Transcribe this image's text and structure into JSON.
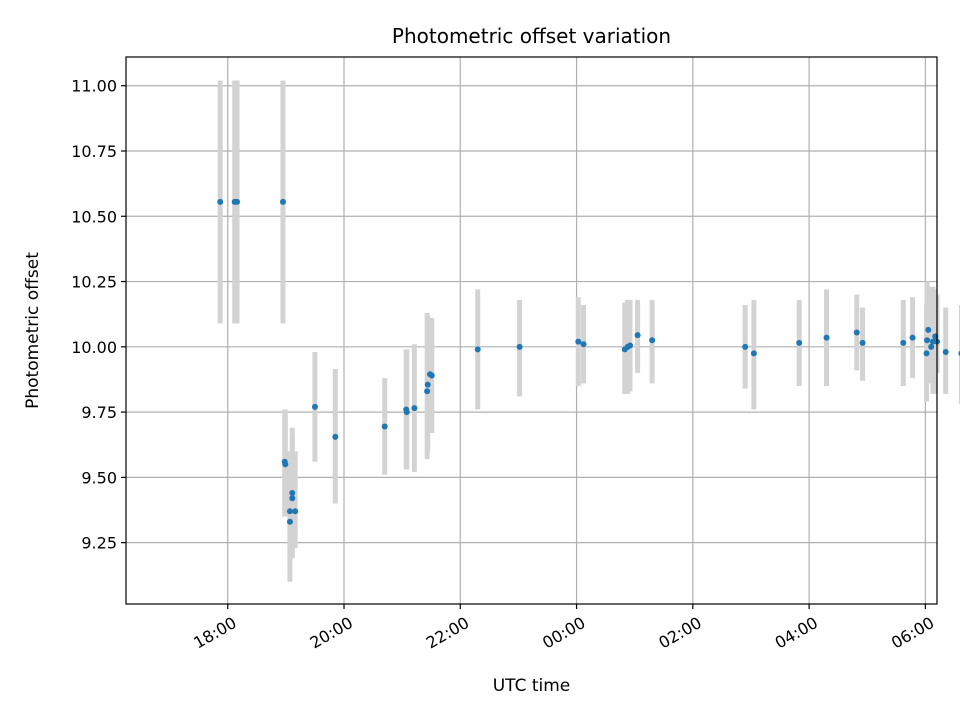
{
  "chart_data": {
    "type": "scatter",
    "title": "Photometric offset variation",
    "xlabel": "UTC time",
    "ylabel": "Photometric offset",
    "x_unit": "hours after 00:00 UTC (negative = previous evening)",
    "xlim": [
      -7.75,
      6.2
    ],
    "ylim": [
      9.015,
      11.11
    ],
    "grid": true,
    "colors": {
      "points": "#1f77b4",
      "error_bars": "#d3d3d3",
      "grid": "#b0b0b0"
    },
    "x_ticks": [
      {
        "value": -6,
        "label": "18:00"
      },
      {
        "value": -4,
        "label": "20:00"
      },
      {
        "value": -2,
        "label": "22:00"
      },
      {
        "value": 0,
        "label": "00:00"
      },
      {
        "value": 2,
        "label": "02:00"
      },
      {
        "value": 4,
        "label": "04:00"
      },
      {
        "value": 6,
        "label": "06:00"
      }
    ],
    "y_ticks": [
      {
        "value": 9.25,
        "label": "9.25"
      },
      {
        "value": 9.5,
        "label": "9.50"
      },
      {
        "value": 9.75,
        "label": "9.75"
      },
      {
        "value": 10.0,
        "label": "10.00"
      },
      {
        "value": 10.25,
        "label": "10.25"
      },
      {
        "value": 10.5,
        "label": "10.50"
      },
      {
        "value": 10.75,
        "label": "10.75"
      },
      {
        "value": 11.0,
        "label": "11.00"
      }
    ],
    "series": [
      {
        "points": [
          {
            "x": -6.13,
            "y": 10.555,
            "lo": 10.09,
            "hi": 11.02
          },
          {
            "x": -5.88,
            "y": 10.555,
            "lo": 10.09,
            "hi": 11.02
          },
          {
            "x": -5.84,
            "y": 10.555,
            "lo": 10.09,
            "hi": 11.02
          },
          {
            "x": -5.05,
            "y": 10.555,
            "lo": 10.09,
            "hi": 11.02
          },
          {
            "x": -5.02,
            "y": 9.56,
            "lo": 9.35,
            "hi": 9.76
          },
          {
            "x": -5.01,
            "y": 9.55,
            "lo": 9.35,
            "hi": 9.76
          },
          {
            "x": -4.93,
            "y": 9.37,
            "lo": 9.1,
            "hi": 9.6
          },
          {
            "x": -4.93,
            "y": 9.33,
            "lo": 9.18,
            "hi": 9.55
          },
          {
            "x": -4.89,
            "y": 9.44,
            "lo": 9.2,
            "hi": 9.69
          },
          {
            "x": -4.89,
            "y": 9.42,
            "lo": 9.19,
            "hi": 9.66
          },
          {
            "x": -4.84,
            "y": 9.37,
            "lo": 9.23,
            "hi": 9.6
          },
          {
            "x": -4.5,
            "y": 9.77,
            "lo": 9.56,
            "hi": 9.98
          },
          {
            "x": -4.15,
            "y": 9.655,
            "lo": 9.4,
            "hi": 9.915
          },
          {
            "x": -3.3,
            "y": 9.695,
            "lo": 9.51,
            "hi": 9.88
          },
          {
            "x": -2.93,
            "y": 9.76,
            "lo": 9.53,
            "hi": 9.99
          },
          {
            "x": -2.92,
            "y": 9.75,
            "lo": 9.53,
            "hi": 9.99
          },
          {
            "x": -2.79,
            "y": 9.765,
            "lo": 9.52,
            "hi": 10.01
          },
          {
            "x": -2.57,
            "y": 9.83,
            "lo": 9.57,
            "hi": 10.13
          },
          {
            "x": -2.56,
            "y": 9.855,
            "lo": 9.6,
            "hi": 10.12
          },
          {
            "x": -2.52,
            "y": 9.895,
            "lo": 9.67,
            "hi": 10.11
          },
          {
            "x": -2.49,
            "y": 9.89,
            "lo": 9.67,
            "hi": 10.11
          },
          {
            "x": -1.7,
            "y": 9.99,
            "lo": 9.76,
            "hi": 10.22
          },
          {
            "x": -0.98,
            "y": 10.0,
            "lo": 9.81,
            "hi": 10.18
          },
          {
            "x": 0.03,
            "y": 10.02,
            "lo": 9.85,
            "hi": 10.19
          },
          {
            "x": 0.12,
            "y": 10.01,
            "lo": 9.86,
            "hi": 10.16
          },
          {
            "x": 0.83,
            "y": 9.99,
            "lo": 9.82,
            "hi": 10.17
          },
          {
            "x": 0.88,
            "y": 10.0,
            "lo": 9.82,
            "hi": 10.18
          },
          {
            "x": 0.92,
            "y": 10.005,
            "lo": 9.83,
            "hi": 10.18
          },
          {
            "x": 1.05,
            "y": 10.045,
            "lo": 9.9,
            "hi": 10.18
          },
          {
            "x": 1.3,
            "y": 10.025,
            "lo": 9.86,
            "hi": 10.18
          },
          {
            "x": 2.9,
            "y": 10.0,
            "lo": 9.84,
            "hi": 10.16
          },
          {
            "x": 3.05,
            "y": 9.975,
            "lo": 9.76,
            "hi": 10.18
          },
          {
            "x": 3.83,
            "y": 10.015,
            "lo": 9.85,
            "hi": 10.18
          },
          {
            "x": 4.3,
            "y": 10.035,
            "lo": 9.85,
            "hi": 10.22
          },
          {
            "x": 4.82,
            "y": 10.055,
            "lo": 9.91,
            "hi": 10.2
          },
          {
            "x": 4.92,
            "y": 10.015,
            "lo": 9.87,
            "hi": 10.15
          },
          {
            "x": 5.62,
            "y": 10.015,
            "lo": 9.85,
            "hi": 10.18
          },
          {
            "x": 5.78,
            "y": 10.035,
            "lo": 9.88,
            "hi": 10.19
          },
          {
            "x": 6.02,
            "y": 9.975,
            "lo": 9.79,
            "hi": 10.16
          },
          {
            "x": 6.03,
            "y": 10.025,
            "lo": 9.87,
            "hi": 10.25
          },
          {
            "x": 6.05,
            "y": 10.065,
            "lo": 9.87,
            "hi": 10.23
          },
          {
            "x": 6.1,
            "y": 10.0,
            "lo": 9.86,
            "hi": 10.2
          },
          {
            "x": 6.13,
            "y": 10.02,
            "lo": 9.82,
            "hi": 10.23
          },
          {
            "x": 6.17,
            "y": 10.04,
            "lo": 9.82,
            "hi": 10.22
          },
          {
            "x": 6.2,
            "y": 10.02,
            "lo": 9.9,
            "hi": 10.2
          },
          {
            "x": 6.35,
            "y": 9.98,
            "lo": 9.82,
            "hi": 10.15
          },
          {
            "x": 6.62,
            "y": 9.975,
            "lo": 9.78,
            "hi": 10.16
          }
        ]
      }
    ]
  }
}
